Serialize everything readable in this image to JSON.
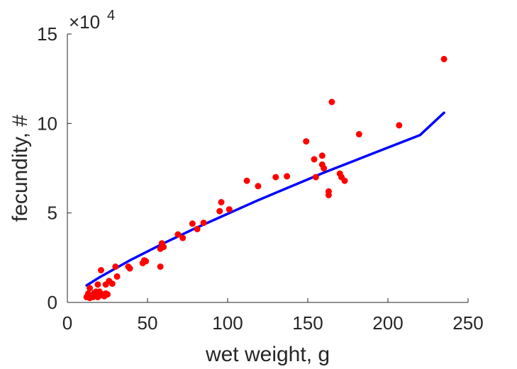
{
  "chart_data": {
    "type": "scatter",
    "title": "",
    "xlabel": "wet weight, g",
    "ylabel": "fecundity, #",
    "xlim": [
      0,
      250
    ],
    "ylim": [
      0,
      150000
    ],
    "y_exponent_label": "×10",
    "y_exponent_power": "4",
    "grid": false,
    "legend": "none",
    "x_ticks": [
      0,
      50,
      100,
      150,
      200,
      250
    ],
    "x_tick_labels": [
      "0",
      "50",
      "100",
      "150",
      "200",
      "250"
    ],
    "y_ticks": [
      0,
      50000,
      100000,
      150000
    ],
    "y_tick_labels": [
      "0",
      "5",
      "10",
      "15"
    ],
    "series": [
      {
        "type": "scatter",
        "color": "#ff0000",
        "points": [
          [
            12,
            3000
          ],
          [
            13,
            5000
          ],
          [
            14,
            8000
          ],
          [
            14,
            2500
          ],
          [
            15,
            4000
          ],
          [
            16,
            3000
          ],
          [
            17,
            5500
          ],
          [
            17,
            3500
          ],
          [
            18,
            4500
          ],
          [
            18,
            6000
          ],
          [
            19,
            10000
          ],
          [
            19,
            3000
          ],
          [
            20,
            5000
          ],
          [
            20,
            6000
          ],
          [
            21,
            4000
          ],
          [
            21,
            18000
          ],
          [
            22,
            4500
          ],
          [
            23,
            3500
          ],
          [
            24,
            10000
          ],
          [
            24,
            5000
          ],
          [
            25,
            4500
          ],
          [
            26,
            12000
          ],
          [
            28,
            10500
          ],
          [
            30,
            20000
          ],
          [
            31,
            14500
          ],
          [
            38,
            20000
          ],
          [
            39,
            19000
          ],
          [
            47,
            22000
          ],
          [
            48,
            23500
          ],
          [
            49,
            23000
          ],
          [
            58,
            30000
          ],
          [
            58,
            20000
          ],
          [
            59,
            33000
          ],
          [
            60,
            31000
          ],
          [
            69,
            38000
          ],
          [
            72,
            36000
          ],
          [
            78,
            44000
          ],
          [
            81,
            41000
          ],
          [
            85,
            44500
          ],
          [
            95,
            51000
          ],
          [
            96,
            56000
          ],
          [
            101,
            52000
          ],
          [
            112,
            68000
          ],
          [
            119,
            65000
          ],
          [
            130,
            70000
          ],
          [
            137,
            70500
          ],
          [
            149,
            90000
          ],
          [
            154,
            80000
          ],
          [
            155,
            70000
          ],
          [
            159,
            77000
          ],
          [
            159,
            82000
          ],
          [
            160,
            75000
          ],
          [
            163,
            62000
          ],
          [
            163,
            60000
          ],
          [
            165,
            112000
          ],
          [
            170,
            72000
          ],
          [
            171,
            70000
          ],
          [
            173,
            68000
          ],
          [
            182,
            94000
          ],
          [
            207,
            99000
          ],
          [
            235,
            136000
          ]
        ]
      },
      {
        "type": "line",
        "color": "#0000ff",
        "fit": "power",
        "x": [
          12,
          20,
          40,
          60,
          80,
          100,
          120,
          140,
          160,
          180,
          200,
          220,
          235
        ],
        "y": [
          9500,
          14000,
          24000,
          33000,
          41500,
          49500,
          57500,
          65000,
          72500,
          79500,
          86500,
          93500,
          106000
        ]
      }
    ]
  }
}
